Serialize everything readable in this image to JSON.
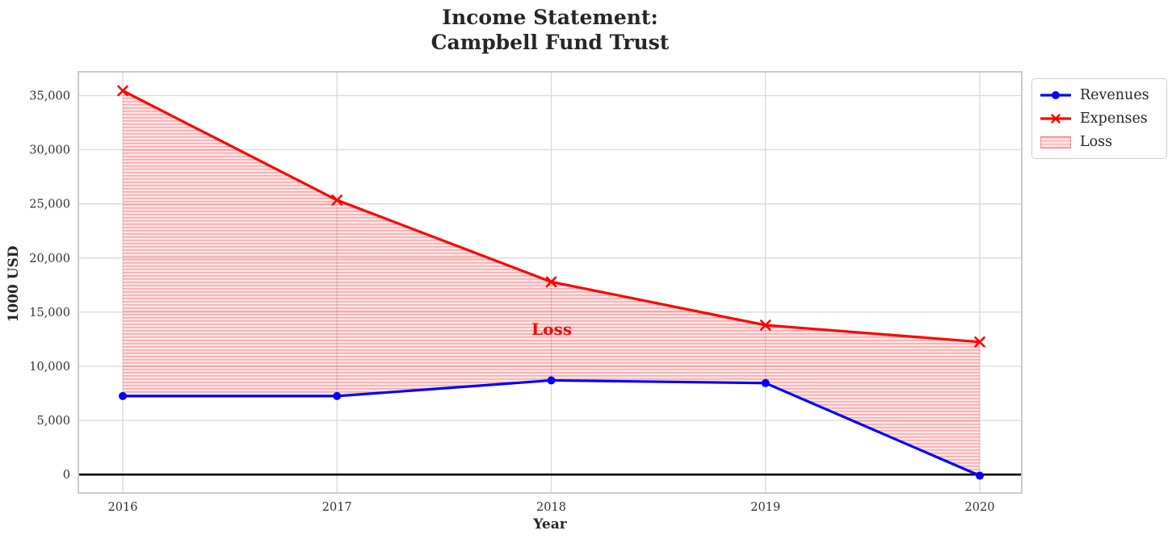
{
  "chart_data": {
    "type": "line",
    "title": "Income Statement:\nCampbell Fund Trust",
    "xlabel": "Year",
    "ylabel": "1000 USD",
    "x": [
      2016,
      2017,
      2018,
      2019,
      2020
    ],
    "x_tick_labels": [
      "2016",
      "2017",
      "2018",
      "2019",
      "2020"
    ],
    "y_ticks": [
      0,
      5000,
      10000,
      15000,
      20000,
      25000,
      30000,
      35000
    ],
    "y_tick_labels": [
      "0",
      "5,000",
      "10,000",
      "15,000",
      "20,000",
      "25,000",
      "30,000",
      "35,000"
    ],
    "ylim": [
      -1700,
      37200
    ],
    "grid": true,
    "series": [
      {
        "name": "Revenues",
        "color": "#0000ff",
        "marker": "circle",
        "values": [
          7250,
          7250,
          8700,
          8450,
          -100
        ]
      },
      {
        "name": "Expenses",
        "color": "#ff0000",
        "marker": "x",
        "values": [
          35450,
          25350,
          17800,
          13800,
          12250
        ]
      }
    ],
    "loss_area": {
      "label": "Loss",
      "between": [
        "Expenses",
        "Revenues"
      ],
      "hatch": "horizontal-stripes",
      "color": "#ff0000"
    },
    "annotation": {
      "text": "Loss",
      "x": 2018,
      "y": 13400,
      "color": "#ff0000"
    },
    "zero_line_color": "#000000",
    "legend": {
      "position": "upper-right-outside",
      "entries": [
        "Revenues",
        "Expenses",
        "Loss"
      ]
    }
  },
  "legend": {
    "items": [
      {
        "label": "Revenues"
      },
      {
        "label": "Expenses"
      },
      {
        "label": "Loss"
      }
    ]
  }
}
